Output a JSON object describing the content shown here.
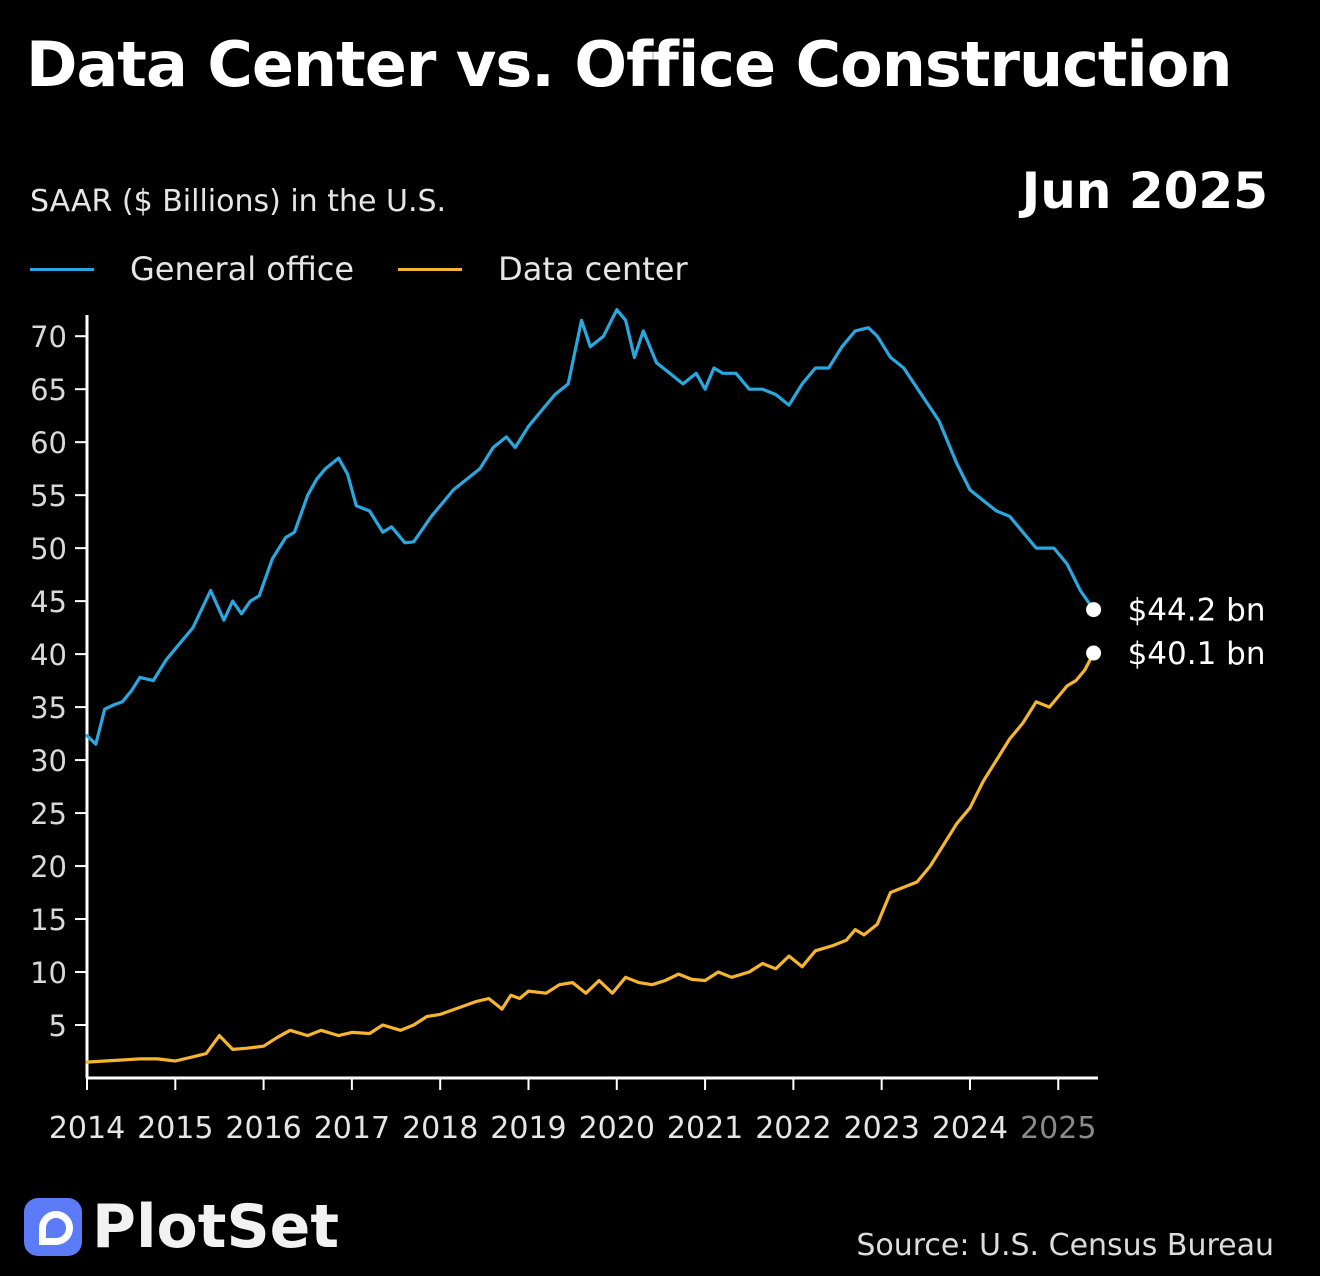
{
  "title": "Data Center vs. Office Construction",
  "subtitle": "SAAR ($ Billions) in the U.S.",
  "date_label": "Jun 2025",
  "logo": {
    "icon": "plotset-logo-icon",
    "text": "PlotSet"
  },
  "source": "Source: U.S. Census Bureau",
  "colors": {
    "office": "#29a8e0",
    "datacenter": "#f5b52e",
    "background": "#000000",
    "axis": "#ffffff"
  },
  "chart_data": {
    "type": "line",
    "title": "Data Center vs. Office Construction",
    "ylabel": "SAAR ($ Billions) in the U.S.",
    "xlabel": "",
    "xlim": [
      2014,
      2025.45
    ],
    "ylim": [
      0,
      72
    ],
    "yticks": [
      5,
      10,
      15,
      20,
      25,
      30,
      35,
      40,
      45,
      50,
      55,
      60,
      65,
      70
    ],
    "xticks": [
      "2014",
      "2015",
      "2016",
      "2017",
      "2018",
      "2019",
      "2020",
      "2021",
      "2022",
      "2023",
      "2024",
      "2025"
    ],
    "grid": false,
    "legend_position": "top-left",
    "series": [
      {
        "name": "General office",
        "x": [
          2014.0,
          2014.1,
          2014.2,
          2014.3,
          2014.4,
          2014.5,
          2014.6,
          2014.75,
          2014.9,
          2015.0,
          2015.2,
          2015.4,
          2015.55,
          2015.65,
          2015.75,
          2015.85,
          2015.95,
          2016.1,
          2016.25,
          2016.35,
          2016.5,
          2016.6,
          2016.7,
          2016.85,
          2016.95,
          2017.05,
          2017.2,
          2017.35,
          2017.45,
          2017.6,
          2017.7,
          2017.9,
          2018.05,
          2018.15,
          2018.3,
          2018.45,
          2018.6,
          2018.75,
          2018.85,
          2019.0,
          2019.15,
          2019.3,
          2019.45,
          2019.6,
          2019.7,
          2019.85,
          2020.0,
          2020.1,
          2020.2,
          2020.3,
          2020.45,
          2020.6,
          2020.75,
          2020.9,
          2021.0,
          2021.1,
          2021.2,
          2021.35,
          2021.5,
          2021.65,
          2021.8,
          2021.95,
          2022.1,
          2022.25,
          2022.4,
          2022.55,
          2022.7,
          2022.85,
          2022.95,
          2023.1,
          2023.25,
          2023.45,
          2023.65,
          2023.85,
          2024.0,
          2024.15,
          2024.3,
          2024.45,
          2024.6,
          2024.75,
          2024.95,
          2025.1,
          2025.25,
          2025.4
        ],
        "values": [
          32.3,
          31.5,
          34.8,
          35.2,
          35.5,
          36.5,
          37.8,
          37.5,
          39.5,
          40.5,
          42.5,
          46,
          43.2,
          45,
          43.8,
          45,
          45.5,
          49,
          51,
          51.5,
          55,
          56.5,
          57.5,
          58.5,
          57,
          54,
          53.5,
          51.5,
          52,
          50.5,
          50.6,
          53,
          54.5,
          55.5,
          56.5,
          57.5,
          59.5,
          60.5,
          59.5,
          61.5,
          63,
          64.5,
          65.5,
          71.5,
          69,
          70,
          72.5,
          71.5,
          68,
          70.5,
          67.5,
          66.5,
          65.5,
          66.5,
          65,
          67,
          66.5,
          66.5,
          65,
          65,
          64.5,
          63.5,
          65.5,
          67,
          67,
          69,
          70.5,
          70.8,
          70,
          68,
          67,
          64.5,
          62,
          58,
          55.5,
          54.5,
          53.5,
          53,
          51.5,
          50,
          50,
          48.5,
          46,
          44.2
        ]
      },
      {
        "name": "Data center",
        "x": [
          2014.0,
          2014.2,
          2014.4,
          2014.6,
          2014.8,
          2015.0,
          2015.2,
          2015.35,
          2015.5,
          2015.65,
          2015.8,
          2016.0,
          2016.15,
          2016.3,
          2016.5,
          2016.65,
          2016.85,
          2017.0,
          2017.2,
          2017.35,
          2017.55,
          2017.7,
          2017.85,
          2018.0,
          2018.2,
          2018.4,
          2018.55,
          2018.7,
          2018.8,
          2018.9,
          2019.0,
          2019.2,
          2019.35,
          2019.5,
          2019.65,
          2019.8,
          2019.95,
          2020.1,
          2020.25,
          2020.4,
          2020.55,
          2020.7,
          2020.85,
          2021.0,
          2021.15,
          2021.3,
          2021.5,
          2021.65,
          2021.8,
          2021.95,
          2022.1,
          2022.25,
          2022.45,
          2022.6,
          2022.7,
          2022.8,
          2022.95,
          2023.1,
          2023.25,
          2023.4,
          2023.55,
          2023.7,
          2023.85,
          2024.0,
          2024.15,
          2024.3,
          2024.45,
          2024.6,
          2024.75,
          2024.9,
          2025.0,
          2025.1,
          2025.2,
          2025.3,
          2025.4
        ],
        "values": [
          1.5,
          1.6,
          1.7,
          1.8,
          1.8,
          1.6,
          2.0,
          2.3,
          4.0,
          2.7,
          2.8,
          3.0,
          3.8,
          4.5,
          4.0,
          4.5,
          4.0,
          4.3,
          4.2,
          5.0,
          4.5,
          5.0,
          5.8,
          6.0,
          6.6,
          7.2,
          7.5,
          6.5,
          7.8,
          7.5,
          8.2,
          8.0,
          8.8,
          9.0,
          8.0,
          9.2,
          8.0,
          9.5,
          9.0,
          8.8,
          9.2,
          9.8,
          9.3,
          9.2,
          10.0,
          9.5,
          10.0,
          10.8,
          10.3,
          11.5,
          10.5,
          12.0,
          12.5,
          13.0,
          14.0,
          13.5,
          14.5,
          17.5,
          18.0,
          18.5,
          20.0,
          22.0,
          24.0,
          25.5,
          28.0,
          30.0,
          32.0,
          33.5,
          35.5,
          35.0,
          36.0,
          37.0,
          37.5,
          38.5,
          40.1
        ]
      }
    ],
    "end_labels": [
      "$44.2 bn",
      "$40.1 bn"
    ]
  }
}
